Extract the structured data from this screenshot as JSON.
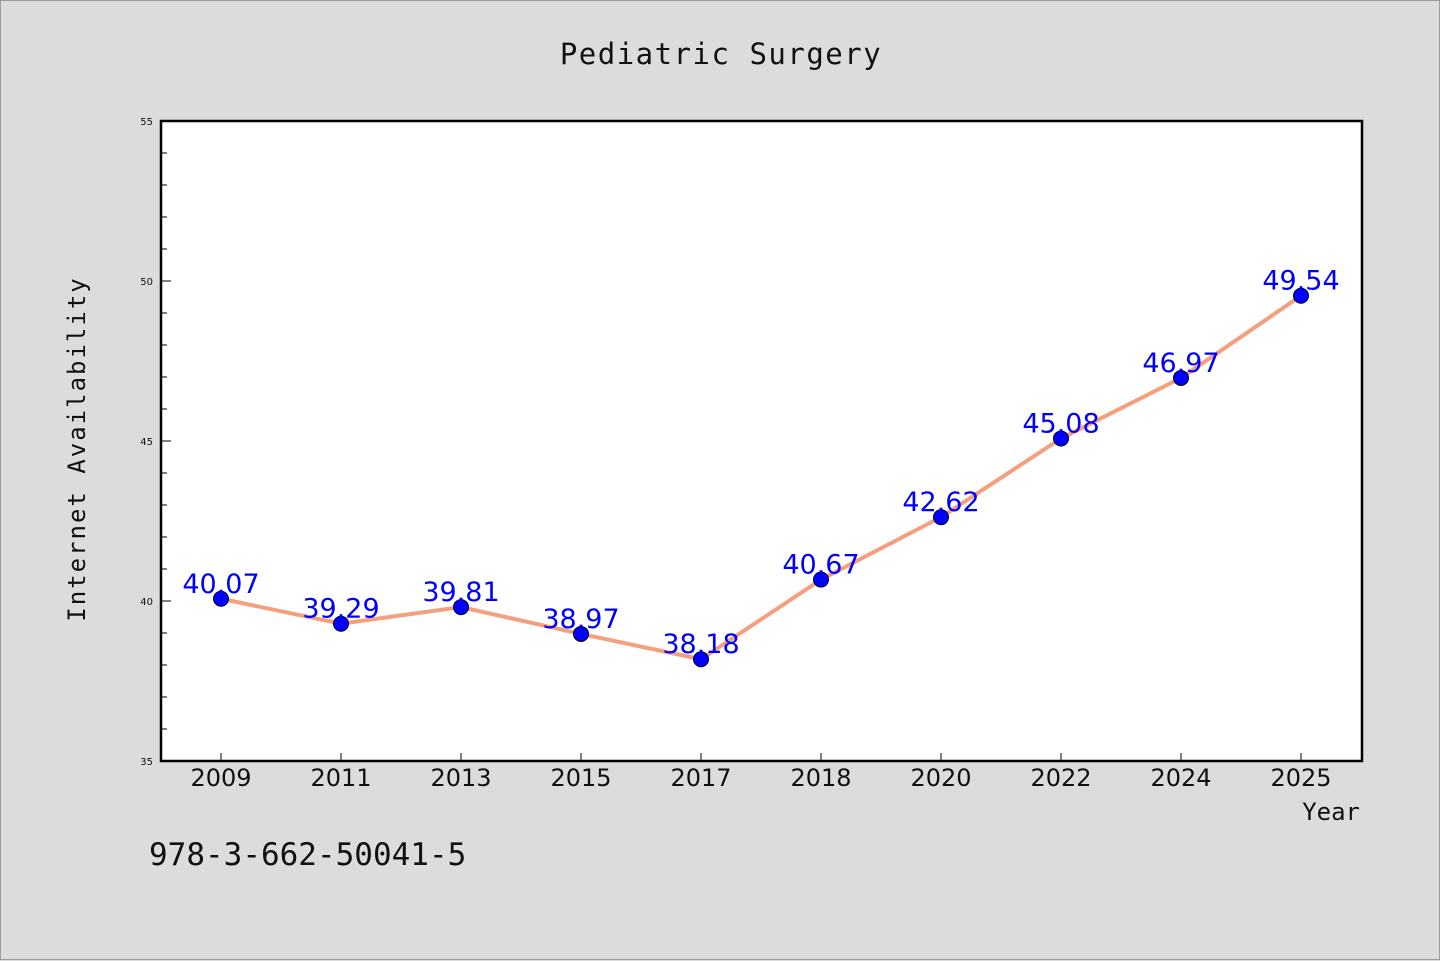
{
  "chart_data": {
    "type": "line",
    "title": "Pediatric Surgery",
    "xlabel": "Year",
    "ylabel": "Internet Availability",
    "categories": [
      "2009",
      "2011",
      "2013",
      "2015",
      "2017",
      "2018",
      "2020",
      "2022",
      "2024",
      "2025"
    ],
    "series": [
      {
        "values": [
          40.07,
          39.29,
          39.81,
          38.97,
          38.18,
          40.67,
          42.62,
          45.08,
          46.97,
          49.54
        ],
        "labels": [
          "40.07",
          "39.29",
          "39.81",
          "38.97",
          "38.18",
          "40.67",
          "42.62",
          "45.08",
          "46.97",
          "49.54"
        ],
        "line_color": "#f4a07e",
        "marker_color": "#0000ff"
      }
    ],
    "ylim": [
      35,
      55
    ],
    "yticks": [
      "35",
      "40",
      "45",
      "50",
      "55"
    ],
    "grid": false,
    "legend": "none"
  },
  "footnote": "978-3-662-50041-5"
}
